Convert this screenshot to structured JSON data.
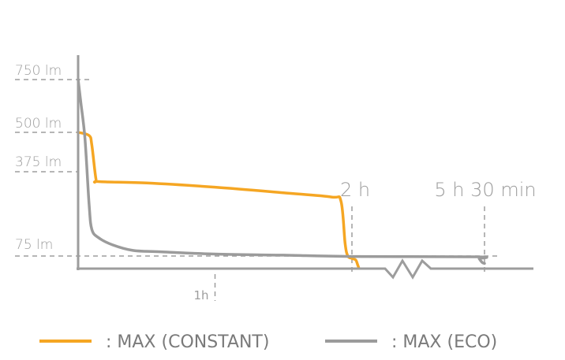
{
  "chart_data": {
    "type": "line",
    "y_ticks": [
      {
        "value": 750,
        "label": "750 lm"
      },
      {
        "value": 500,
        "label": "500 lm"
      },
      {
        "value": 375,
        "label": "375 lm"
      },
      {
        "value": 75,
        "label": "75 lm"
      }
    ],
    "x_ticks": [
      {
        "value": 1,
        "label": "1h"
      },
      {
        "value": 2,
        "label": "2 h"
      },
      {
        "value": 5.5,
        "label": "5 h 30 min"
      }
    ],
    "x_unit": "hours (axis broken between 2 h and 5 h 30 min)",
    "series": [
      {
        "name": ": MAX (CONSTANT)",
        "color": "#f5a623",
        "points": [
          [
            0,
            500
          ],
          [
            0.08,
            490
          ],
          [
            0.1,
            460
          ],
          [
            0.13,
            350
          ],
          [
            0.15,
            340
          ],
          [
            0.5,
            335
          ],
          [
            1,
            320
          ],
          [
            1.5,
            300
          ],
          [
            1.85,
            285
          ],
          [
            1.92,
            270
          ],
          [
            1.95,
            120
          ],
          [
            1.97,
            75
          ],
          [
            2.0,
            60
          ],
          [
            2.1,
            50
          ],
          [
            2.15,
            20
          ],
          [
            2.18,
            0
          ]
        ]
      },
      {
        "name": ": MAX (ECO)",
        "color": "#9b9b9b",
        "points": [
          [
            0,
            750
          ],
          [
            0.02,
            640
          ],
          [
            0.05,
            480
          ],
          [
            0.08,
            260
          ],
          [
            0.1,
            170
          ],
          [
            0.15,
            140
          ],
          [
            0.25,
            115
          ],
          [
            0.4,
            95
          ],
          [
            0.6,
            90
          ],
          [
            1,
            82
          ],
          [
            1.5,
            78
          ],
          [
            2.0,
            72
          ],
          [
            5.3,
            70
          ],
          [
            5.36,
            58
          ],
          [
            5.4,
            45
          ],
          [
            5.45,
            32
          ],
          [
            5.5,
            28
          ]
        ]
      }
    ],
    "legend": [
      {
        "label": ": MAX (CONSTANT)",
        "color": "#f5a623"
      },
      {
        "label": ": MAX (ECO)",
        "color": "#9b9b9b"
      }
    ],
    "legend_position": "bottom",
    "grid": false
  }
}
